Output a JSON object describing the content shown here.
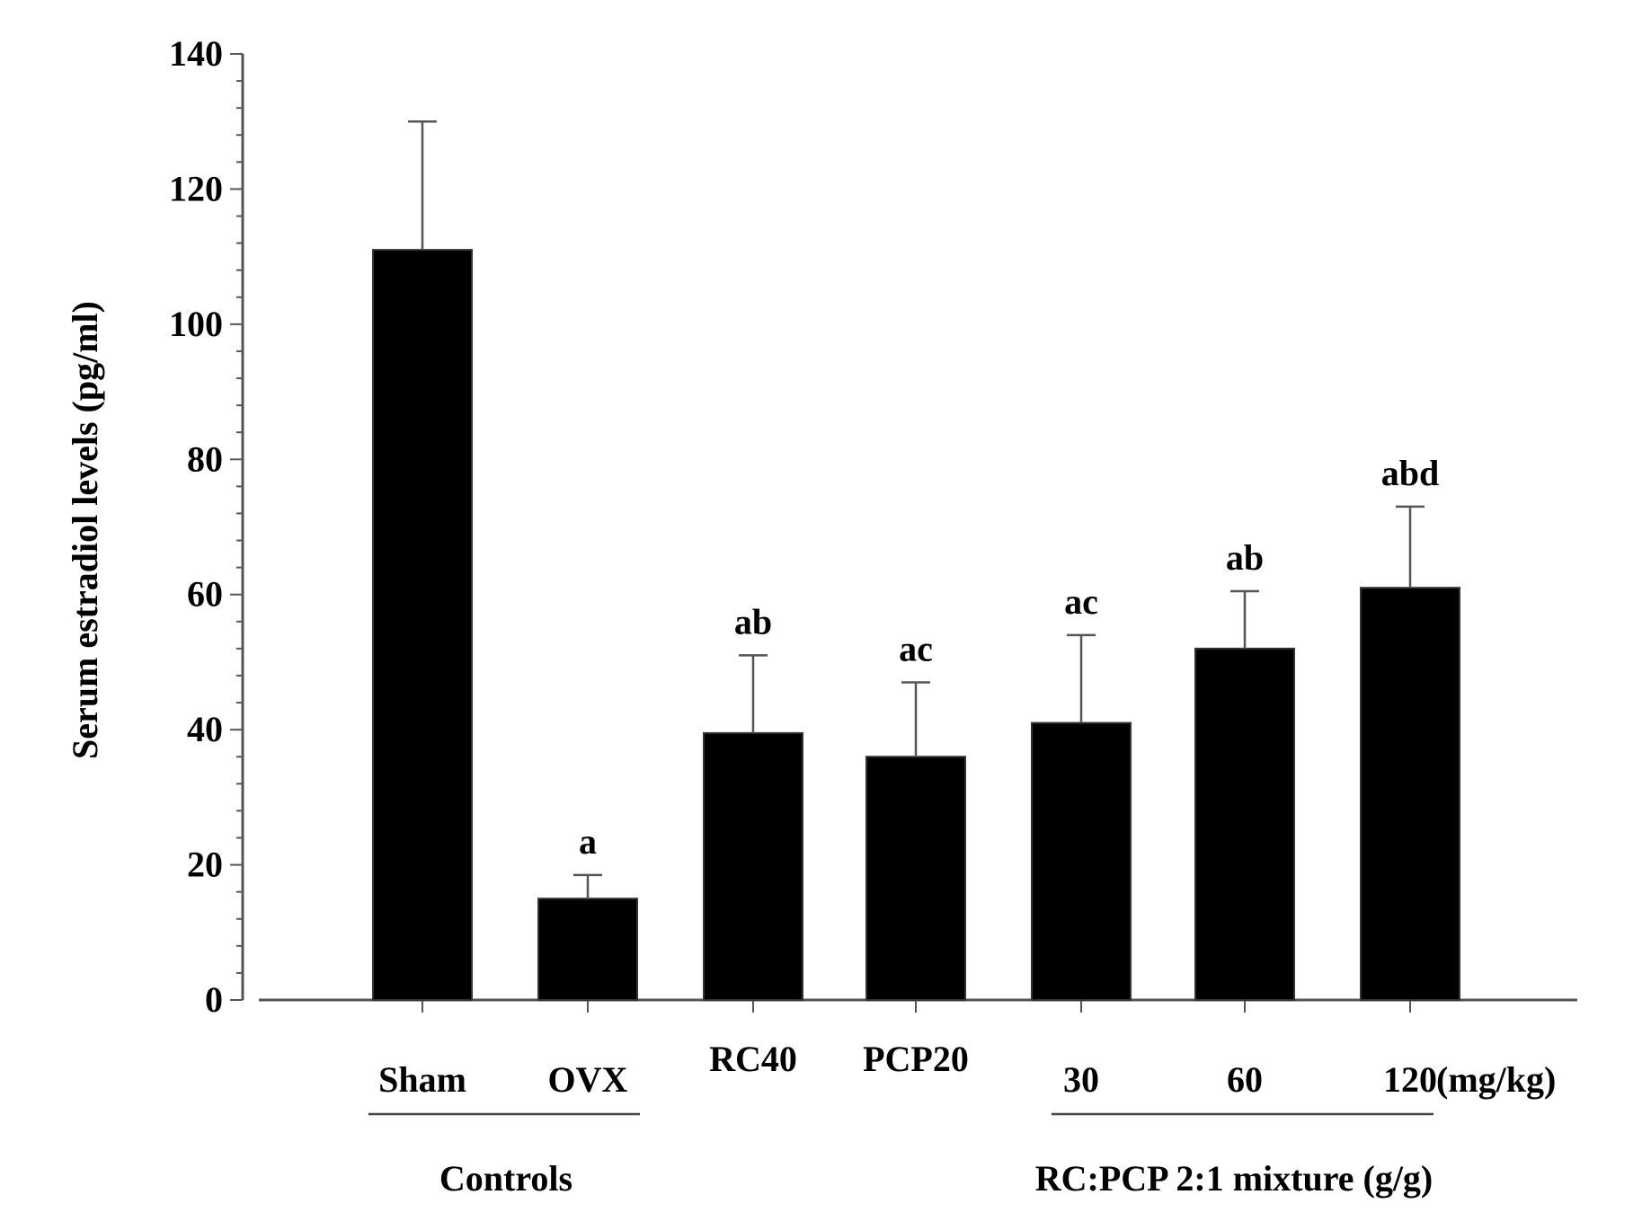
{
  "chart_data": {
    "type": "bar",
    "title": "",
    "ylabel": "Serum estradiol levels (pg/ml)",
    "ylim": [
      0,
      140
    ],
    "y_ticks": [
      "0",
      "20",
      "40",
      "60",
      "80",
      "100",
      "120",
      "140"
    ],
    "categories": [
      "Sham",
      "OVX",
      "RC40",
      "PCP20",
      "30",
      "60",
      "120"
    ],
    "values": [
      111,
      15,
      39.5,
      36,
      41,
      52,
      61
    ],
    "errors": [
      19,
      3.5,
      11.5,
      11,
      13,
      8.5,
      12
    ],
    "significance_labels": [
      "",
      "a",
      "ab",
      "ac",
      "ac",
      "ab",
      "abd"
    ],
    "dose_unit": "(mg/kg)",
    "groups": [
      {
        "label": "Controls",
        "members": [
          "Sham",
          "OVX"
        ]
      },
      {
        "label": "RC:PCP 2:1 mixture (g/g)",
        "members": [
          "30",
          "60",
          "120"
        ]
      }
    ],
    "bar_color": "#000000",
    "grid": false
  }
}
